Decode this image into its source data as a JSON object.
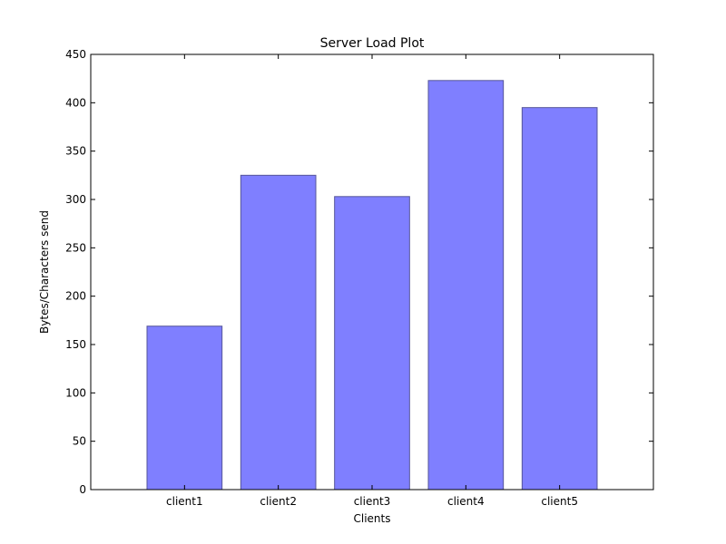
{
  "chart_data": {
    "type": "bar",
    "title": "Server Load Plot",
    "xlabel": "Clients",
    "ylabel": "Bytes/Characters send",
    "categories": [
      "client1",
      "client2",
      "client3",
      "client4",
      "client5"
    ],
    "values": [
      169,
      325,
      303,
      423,
      395
    ],
    "ylim": [
      0,
      450
    ],
    "yticks": [
      "0",
      "50",
      "100",
      "150",
      "200",
      "250",
      "300",
      "350",
      "400",
      "450"
    ],
    "grid": false,
    "legend": "none",
    "bar_color": "#7f7fff",
    "bar_edge_color": "#555599"
  }
}
